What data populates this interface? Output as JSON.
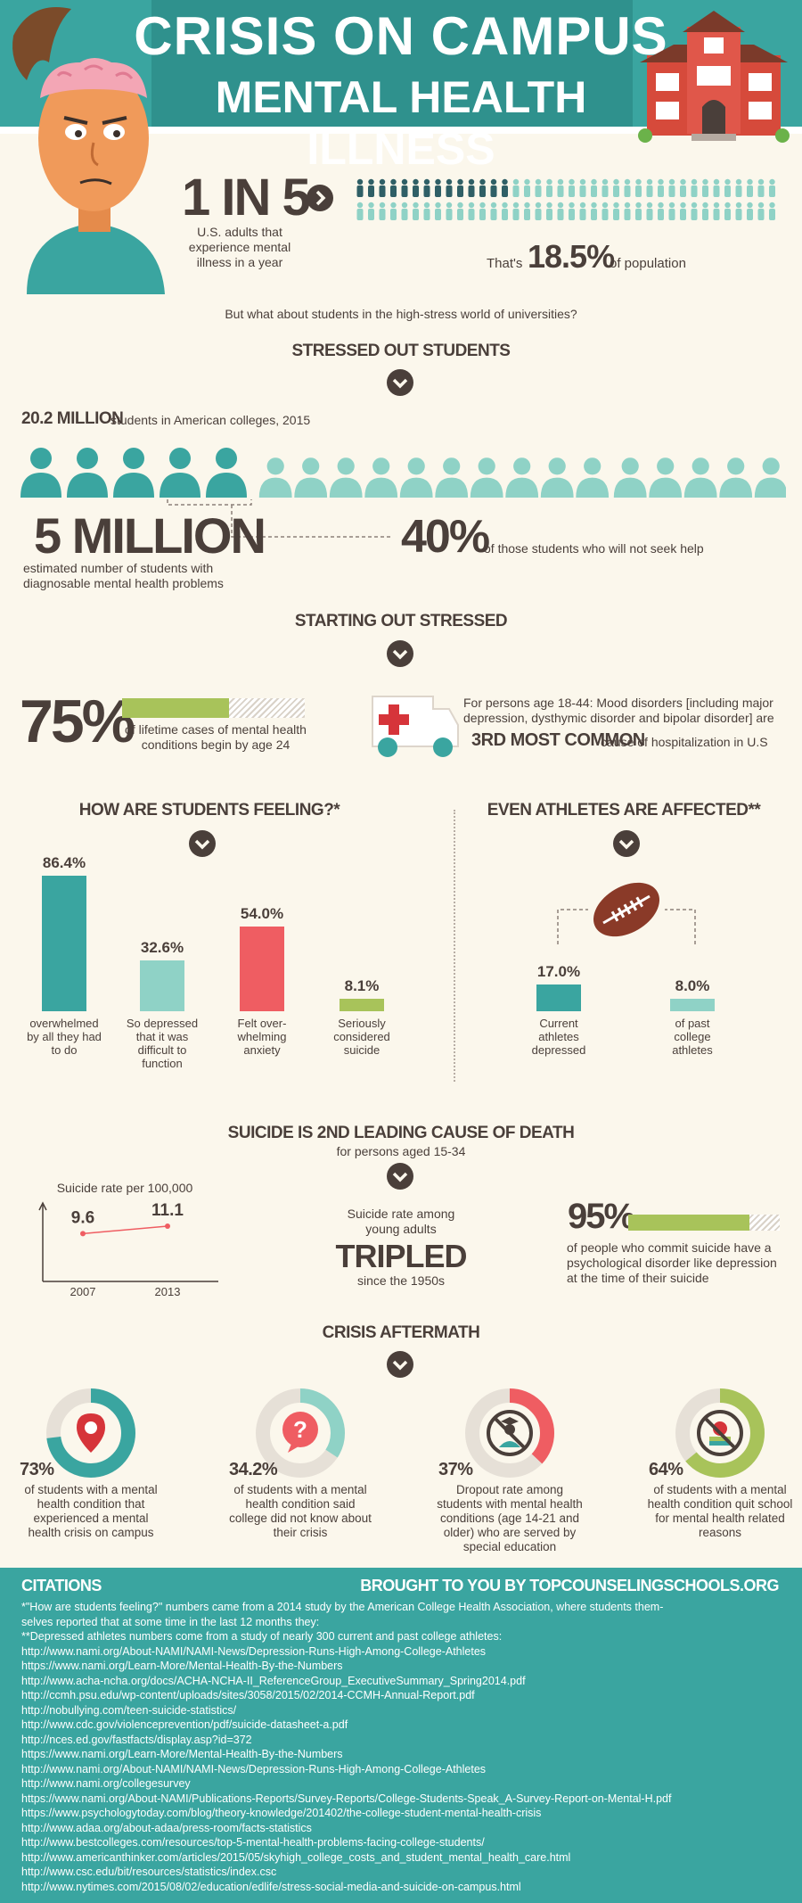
{
  "colors": {
    "teal": "#3aa5a0",
    "mint": "#8fd2c6",
    "red": "#ef5d62",
    "green": "#a8c35a",
    "dark": "#4a3f3a",
    "cream": "#fbf7ec"
  },
  "header": {
    "title1": "CRISIS ON CAMPUS",
    "title2": "MENTAL HEALTH ILLNESS"
  },
  "intro": {
    "big": "1 IN 5",
    "desc": "U.S. adults that experience mental illness in a year",
    "thats": "That's",
    "percent": "18.5%",
    "of_pop": "of population",
    "question": "But what about students in the high-stress world of universities?"
  },
  "stressed": {
    "title": "STRESSED OUT STUDENTS",
    "count": "20.2 MILLION",
    "count_desc": "students in American colleges, 2015",
    "five": "5 MILLION",
    "five_desc": "estimated number of students with diagnosable mental health problems",
    "forty": "40%",
    "forty_desc": "of those students who will not seek help"
  },
  "starting": {
    "title": "STARTING OUT STRESSED",
    "pct": "75%",
    "pct_value": 75,
    "pct_desc": "of lifetime cases of mental health conditions begin by age 24",
    "persons": "For persons age 18-44: Mood disorders [including major depression, dysthymic disorder and bipolar disorder] are",
    "third": "3RD MOST COMMON",
    "third_desc": "cause of hospitalization in U.S"
  },
  "feeling": {
    "title": "HOW ARE STUDENTS FEELING?*",
    "bars": [
      {
        "value": "86.4%",
        "num": 86.4,
        "label": "overwhelmed by all they had to do"
      },
      {
        "value": "32.6%",
        "num": 32.6,
        "label": "So depressed that it was difficult to function"
      },
      {
        "value": "54.0%",
        "num": 54.0,
        "label": "Felt over-whelming anxiety"
      },
      {
        "value": "8.1%",
        "num": 8.1,
        "label": "Seriously considered suicide"
      }
    ]
  },
  "athletes": {
    "title": "EVEN ATHLETES ARE AFFECTED**",
    "bars": [
      {
        "value": "17.0%",
        "num": 17.0,
        "label": "Current athletes depressed"
      },
      {
        "value": "8.0%",
        "num": 8.0,
        "label": "of past college athletes"
      }
    ]
  },
  "suicide": {
    "title": "SUICIDE IS 2ND LEADING CAUSE OF DEATH",
    "subtitle": "for persons aged 15-34",
    "rate_label": "Suicide rate per 100,000",
    "years": [
      "2007",
      "2013"
    ],
    "values": [
      "9.6",
      "11.1"
    ],
    "rate_nums": [
      9.6,
      11.1
    ],
    "young": "Suicide rate among young adults",
    "tripled": "TRIPLED",
    "since": "since the 1950s",
    "ninety_five": "95%",
    "ninety_five_value": 95,
    "ninety_five_desc": "of people who commit suicide have a psychological disorder like depression at the time of their suicide"
  },
  "aftermath": {
    "title": "CRISIS AFTERMATH",
    "items": [
      {
        "value": "73%",
        "num": 73,
        "desc": "of students with a mental health condition that experienced a mental health crisis on campus",
        "icon": "location-pin-icon"
      },
      {
        "value": "34.2%",
        "num": 34.2,
        "desc": "of students with a mental health condition said college did not know about their crisis",
        "icon": "question-bubble-icon"
      },
      {
        "value": "37%",
        "num": 37,
        "desc": "Dropout rate among students with mental health conditions (age 14-21 and older) who are served by special education",
        "icon": "no-graduate-icon"
      },
      {
        "value": "64%",
        "num": 64,
        "desc": "of students with a mental health condition quit school for mental health related reasons",
        "icon": "no-apple-books-icon"
      }
    ]
  },
  "citations": {
    "title": "CITATIONS",
    "brought": "BROUGHT TO YOU BY TOPCOUNSELINGSCHOOLS.ORG",
    "lines": [
      "*\"How are students feeling?\" numbers came from a 2014 study by the American College Health Association, where students them-",
      "selves reported that at some time in the last 12 months they:",
      "**Depressed athletes numbers come from a study of nearly 300 current and past college athletes:",
      "http://www.nami.org/About-NAMI/NAMI-News/Depression-Runs-High-Among-College-Athletes",
      "https://www.nami.org/Learn-More/Mental-Health-By-the-Numbers",
      "http://www.acha-ncha.org/docs/ACHA-NCHA-II_ReferenceGroup_ExecutiveSummary_Spring2014.pdf",
      "http://ccmh.psu.edu/wp-content/uploads/sites/3058/2015/02/2014-CCMH-Annual-Report.pdf",
      "http://nobullying.com/teen-suicide-statistics/",
      "http://www.cdc.gov/violenceprevention/pdf/suicide-datasheet-a.pdf",
      "http://nces.ed.gov/fastfacts/display.asp?id=372",
      "https://www.nami.org/Learn-More/Mental-Health-By-the-Numbers",
      "http://www.nami.org/About-NAMI/NAMI-News/Depression-Runs-High-Among-College-Athletes",
      "http://www.nami.org/collegesurvey",
      "https://www.nami.org/About-NAMI/Publications-Reports/Survey-Reports/College-Students-Speak_A-Survey-Report-on-Mental-H.pdf",
      "https://www.psychologytoday.com/blog/theory-knowledge/201402/the-college-student-mental-health-crisis",
      "http://www.adaa.org/about-adaa/press-room/facts-statistics",
      "http://www.bestcolleges.com/resources/top-5-mental-health-problems-facing-college-students/",
      "http://www.americanthinker.com/articles/2015/05/skyhigh_college_costs_and_student_mental_health_care.html",
      "http://www.csc.edu/bit/resources/statistics/index.csc",
      "http://www.nytimes.com/2015/08/02/education/edlife/stress-social-media-and-suicide-on-campus.html"
    ]
  }
}
